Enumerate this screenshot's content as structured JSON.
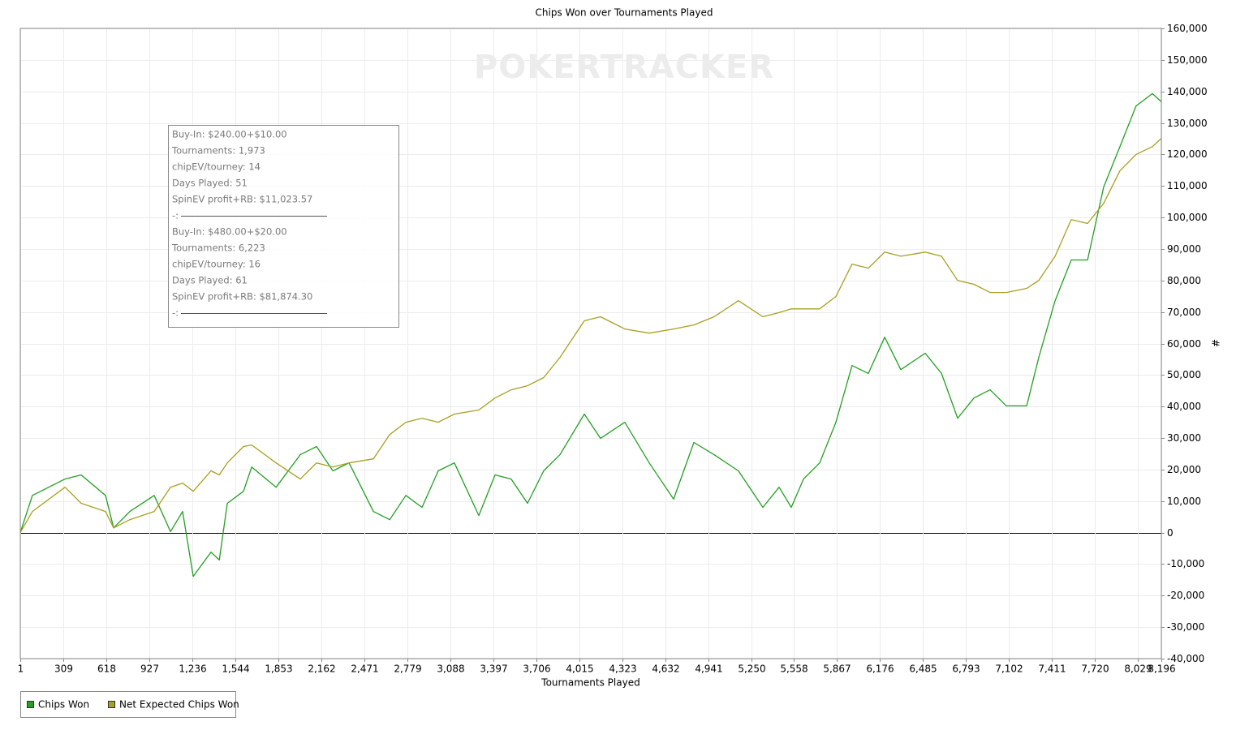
{
  "chart_data": {
    "type": "line",
    "title": "Chips Won over Tournaments Played",
    "x_label": "Tournaments Played",
    "y_label": "#",
    "watermark": "POKERTRACKER",
    "x": [
      1,
      88,
      322,
      438,
      613,
      671,
      788,
      963,
      1080,
      1167,
      1243,
      1371,
      1430,
      1488,
      1604,
      1663,
      1838,
      2012,
      2129,
      2246,
      2362,
      2537,
      2654,
      2770,
      2886,
      3003,
      3119,
      3294,
      3411,
      3527,
      3644,
      3760,
      3877,
      4052,
      4168,
      4343,
      4518,
      4693,
      4839,
      4984,
      5159,
      5334,
      5451,
      5538,
      5626,
      5742,
      5859,
      5975,
      6092,
      6209,
      6325,
      6500,
      6617,
      6733,
      6850,
      6966,
      7083,
      7229,
      7316,
      7433,
      7549,
      7666,
      7782,
      7899,
      8015,
      8132,
      8196
    ],
    "series": [
      {
        "name": "Chips Won",
        "color": "#22a022",
        "values": [
          0,
          11800,
          17000,
          18300,
          11800,
          1500,
          6700,
          11800,
          300,
          6700,
          -13900,
          -6200,
          -8700,
          9300,
          13100,
          20800,
          14400,
          24700,
          27300,
          19600,
          22100,
          6700,
          4100,
          11800,
          8000,
          19600,
          22100,
          5400,
          18300,
          17000,
          9300,
          19600,
          24700,
          37600,
          29900,
          35000,
          22100,
          10600,
          28600,
          24700,
          19600,
          8000,
          14400,
          8000,
          17000,
          22100,
          35000,
          53000,
          50500,
          62000,
          51700,
          56900,
          50500,
          36300,
          42700,
          45300,
          40200,
          40200,
          55600,
          73600,
          86500,
          86500,
          109700,
          122500,
          135400,
          139300,
          136700
        ]
      },
      {
        "name": "Net Expected Chips Won",
        "color": "#a8a020",
        "values": [
          0,
          6700,
          14400,
          9300,
          6700,
          1500,
          4100,
          6700,
          14400,
          15700,
          13100,
          19600,
          18300,
          22100,
          27300,
          27800,
          22100,
          17000,
          22100,
          20800,
          22100,
          23400,
          31100,
          35000,
          36300,
          35000,
          37600,
          38900,
          42700,
          45300,
          46600,
          49200,
          55600,
          67200,
          68500,
          64600,
          63300,
          64600,
          65900,
          68500,
          73600,
          68500,
          69800,
          71000,
          71000,
          71000,
          74900,
          85200,
          83900,
          89000,
          87700,
          89000,
          87700,
          80000,
          78800,
          76200,
          76200,
          77500,
          80000,
          87700,
          99300,
          98100,
          104500,
          114800,
          120000,
          122500,
          125100
        ]
      }
    ],
    "xlim": [
      1,
      8196
    ],
    "xticks": [
      1,
      309,
      618,
      927,
      {
        "value": 1236,
        "label": "1,236"
      },
      {
        "value": 1544,
        "label": "1,544"
      },
      {
        "value": 1853,
        "label": "1,853"
      },
      {
        "value": 2162,
        "label": "2,162"
      },
      {
        "value": 2471,
        "label": "2,471"
      },
      {
        "value": 2779,
        "label": "2,779"
      },
      {
        "value": 3088,
        "label": "3,088"
      },
      {
        "value": 3397,
        "label": "3,397"
      },
      {
        "value": 3706,
        "label": "3,706"
      },
      {
        "value": 4015,
        "label": "4,015"
      },
      {
        "value": 4323,
        "label": "4,323"
      },
      {
        "value": 4632,
        "label": "4,632"
      },
      {
        "value": 4941,
        "label": "4,941"
      },
      {
        "value": 5250,
        "label": "5,250"
      },
      {
        "value": 5558,
        "label": "5,558"
      },
      {
        "value": 5867,
        "label": "5,867"
      },
      {
        "value": 6176,
        "label": "6,176"
      },
      {
        "value": 6485,
        "label": "6,485"
      },
      {
        "value": 6793,
        "label": "6,793"
      },
      {
        "value": 7102,
        "label": "7,102"
      },
      {
        "value": 7411,
        "label": "7,411"
      },
      {
        "value": 7720,
        "label": "7,720"
      },
      {
        "value": 8029,
        "label": "8,029"
      },
      {
        "value": 8196,
        "label": "8,196"
      }
    ],
    "ylim": [
      -40000,
      160000
    ],
    "yticks": [
      {
        "value": -40000,
        "label": "-40,000"
      },
      {
        "value": -30000,
        "label": "-30,000"
      },
      {
        "value": -20000,
        "label": "-20,000"
      },
      {
        "value": -10000,
        "label": "-10,000"
      },
      0,
      {
        "value": 10000,
        "label": "10,000"
      },
      {
        "value": 20000,
        "label": "20,000"
      },
      {
        "value": 30000,
        "label": "30,000"
      },
      {
        "value": 40000,
        "label": "40,000"
      },
      {
        "value": 50000,
        "label": "50,000"
      },
      {
        "value": 60000,
        "label": "60,000"
      },
      {
        "value": 70000,
        "label": "70,000"
      },
      {
        "value": 80000,
        "label": "80,000"
      },
      {
        "value": 90000,
        "label": "90,000"
      },
      {
        "value": 100000,
        "label": "100,000"
      },
      {
        "value": 110000,
        "label": "110,000"
      },
      {
        "value": 120000,
        "label": "120,000"
      },
      {
        "value": 130000,
        "label": "130,000"
      },
      {
        "value": 140000,
        "label": "140,000"
      },
      {
        "value": 150000,
        "label": "150,000"
      },
      {
        "value": 160000,
        "label": "160,000"
      }
    ],
    "grid": true,
    "legend": "bottom-left",
    "annotation_lines": [
      "Buy-In: $240.00+$10.00",
      "Tournaments: 1,973",
      "chipEV/tourney: 14",
      "Days Played: 51",
      "SpinEV profit+RB: $11,023.57",
      "-:",
      "Buy-In: $480.00+$20.00",
      "Tournaments: 6,223",
      "chipEV/tourney: 16",
      "Days Played: 61",
      "SpinEV profit+RB: $81,874.30",
      "-:"
    ]
  }
}
